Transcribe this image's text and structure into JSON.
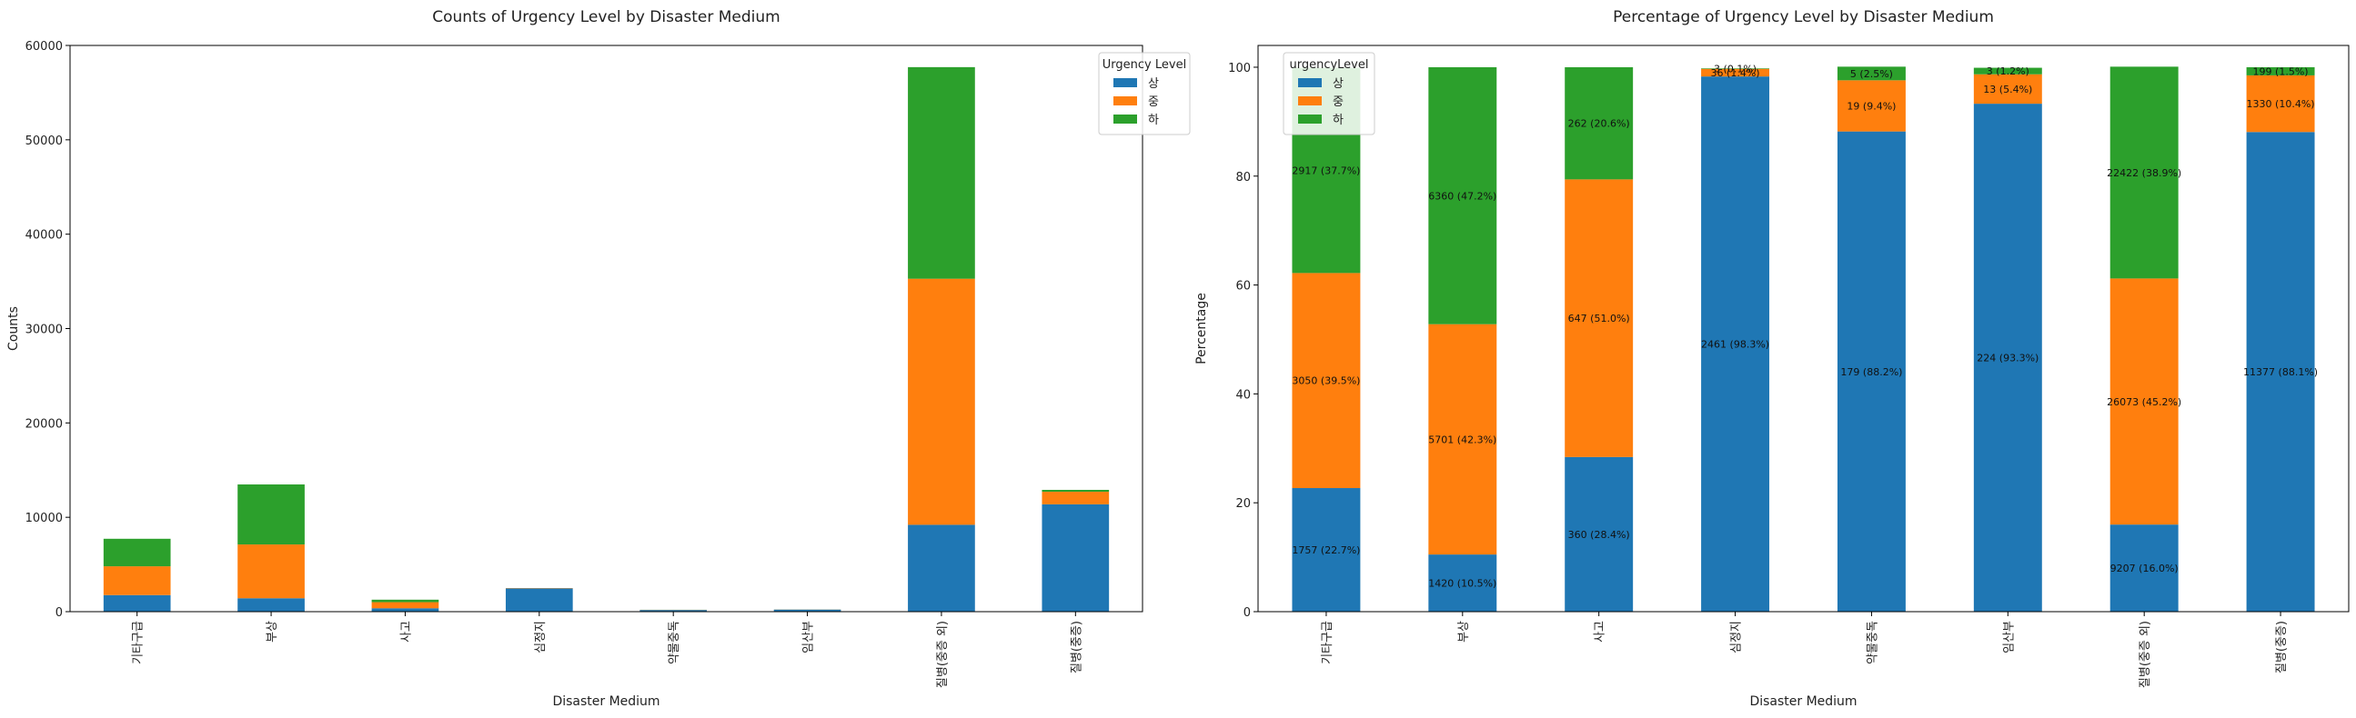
{
  "chart_data": [
    {
      "type": "bar",
      "stacked": true,
      "title": "Counts of Urgency Level by Disaster Medium",
      "xlabel": "Disaster Medium",
      "ylabel": "Counts",
      "ylim": [
        0,
        60000
      ],
      "yticks": [
        0,
        10000,
        20000,
        30000,
        40000,
        50000,
        60000
      ],
      "categories": [
        "기타구급",
        "부상",
        "사고",
        "심정지",
        "약물중독",
        "임산부",
        "질병(중증 외)",
        "질병(중증)"
      ],
      "legend": {
        "title": "Urgency Level",
        "position": "top-right"
      },
      "grid": false,
      "series": [
        {
          "name": "상",
          "color": "#1f77b4",
          "values": [
            1757,
            1420,
            360,
            2461,
            179,
            224,
            9207,
            11377
          ]
        },
        {
          "name": "중",
          "color": "#ff7f0e",
          "values": [
            3050,
            5701,
            647,
            36,
            19,
            13,
            26073,
            1330
          ]
        },
        {
          "name": "하",
          "color": "#2ca02c",
          "values": [
            2917,
            6360,
            262,
            3,
            5,
            3,
            22422,
            199
          ]
        }
      ]
    },
    {
      "type": "bar",
      "stacked": true,
      "percent": true,
      "title": "Percentage of Urgency Level by Disaster Medium",
      "xlabel": "Disaster Medium",
      "ylabel": "Percentage",
      "ylim": [
        0,
        104
      ],
      "yticks": [
        0,
        20,
        40,
        60,
        80,
        100
      ],
      "categories": [
        "기타구급",
        "부상",
        "사고",
        "심정지",
        "약물중독",
        "임산부",
        "질병(중증 외)",
        "질병(중증)"
      ],
      "legend": {
        "title": "urgencyLevel",
        "position": "top-left"
      },
      "grid": false,
      "series": [
        {
          "name": "상",
          "color": "#1f77b4",
          "values": [
            22.7,
            10.5,
            28.4,
            98.3,
            88.2,
            93.3,
            16.0,
            88.1
          ],
          "labels": [
            "1757 (22.7%)",
            "1420 (10.5%)",
            "360 (28.4%)",
            "2461 (98.3%)",
            "179 (88.2%)",
            "224 (93.3%)",
            "9207 (16.0%)",
            "11377 (88.1%)"
          ]
        },
        {
          "name": "중",
          "color": "#ff7f0e",
          "values": [
            39.5,
            42.3,
            51.0,
            1.4,
            9.4,
            5.4,
            45.2,
            10.4
          ],
          "labels": [
            "3050 (39.5%)",
            "5701 (42.3%)",
            "647 (51.0%)",
            "36 (1.4%)",
            "19 (9.4%)",
            "13 (5.4%)",
            "26073 (45.2%)",
            "1330 (10.4%)"
          ]
        },
        {
          "name": "하",
          "color": "#2ca02c",
          "values": [
            37.7,
            47.2,
            20.6,
            0.1,
            2.5,
            1.2,
            38.9,
            1.5
          ],
          "labels": [
            "2917 (37.7%)",
            "6360 (47.2%)",
            "262 (20.6%)",
            "3 (0.1%)",
            "5 (2.5%)",
            "3 (1.2%)",
            "22422 (38.9%)",
            "199 (1.5%)"
          ]
        }
      ]
    }
  ]
}
